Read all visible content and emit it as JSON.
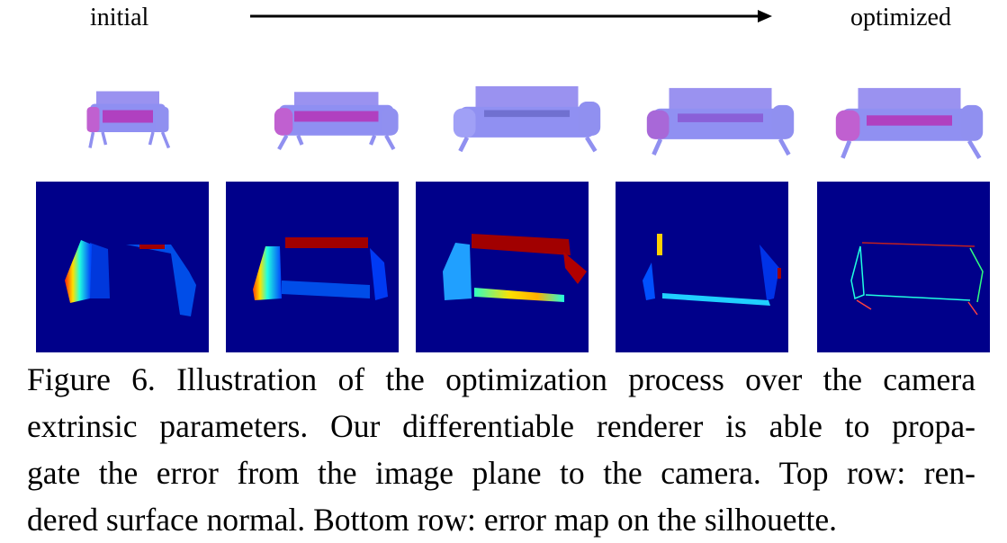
{
  "labels": {
    "initial": "initial",
    "optimized": "optimized"
  },
  "caption": {
    "lines": [
      "Figure 6. Illustration of the optimization process over the camera",
      "extrinsic parameters. Our differentiable renderer is able to propa-",
      "gate the error from the image plane to the camera. Top row: ren-",
      "dered surface normal. Bottom row: error map on the silhouette."
    ]
  },
  "colors": {
    "error_background": "#00008a",
    "sofa_normal": "#8a8cf0",
    "sofa_seat": "#b23ab8",
    "error_red": "#a10000"
  }
}
